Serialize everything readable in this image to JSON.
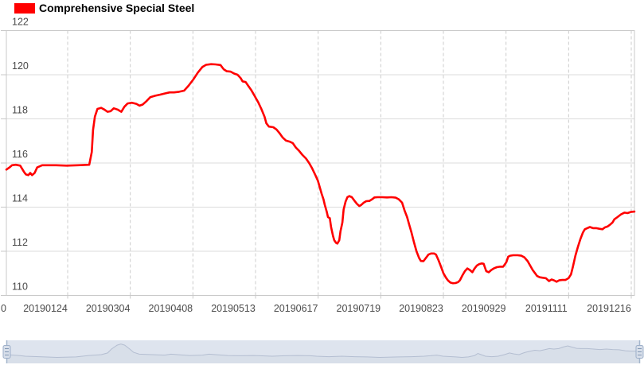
{
  "legend": {
    "label": "Comprehensive Special Steel",
    "swatch_color": "#FF0000"
  },
  "colors": {
    "series_line": "#FF0000",
    "h_grid": "#DBDBDB",
    "v_grid": "#CCCCCC",
    "plot_border": "#C8C8C8",
    "axis_text": "#4A4A4A",
    "nav_bg": "#DEE4EE",
    "nav_shadow_line": "#B4BED1",
    "nav_shadow_fill": "#D3DAE6",
    "nav_stem": "#A4B6CC",
    "nav_handle_fill": "#D8DFEA",
    "nav_handle_border": "#9DAFC9",
    "nav_handle_grip": "#7F95B3"
  },
  "chart_data": {
    "type": "line",
    "title": "Comprehensive Special Steel",
    "grid": {
      "horizontal": "solid",
      "vertical": "dashed",
      "legend_position": "top-left"
    },
    "y_axis": {
      "min": 110,
      "max": 122,
      "step": 2,
      "tick_labels": [
        "122",
        "120",
        "118",
        "116",
        "114",
        "112",
        "110"
      ]
    },
    "x_axis": {
      "left_clipped_label": "0",
      "tick_labels": [
        "20190124",
        "20190304",
        "20190408",
        "20190513",
        "20190617",
        "20190719",
        "20190823",
        "20190929",
        "20191111",
        "20191216"
      ]
    },
    "series": [
      {
        "name": "Comprehensive Special Steel",
        "color": "#FF0000",
        "points": [
          [
            0.0,
            115.7
          ],
          [
            0.005,
            115.8
          ],
          [
            0.009,
            115.9
          ],
          [
            0.015,
            115.92
          ],
          [
            0.022,
            115.88
          ],
          [
            0.028,
            115.6
          ],
          [
            0.031,
            115.48
          ],
          [
            0.035,
            115.45
          ],
          [
            0.038,
            115.55
          ],
          [
            0.041,
            115.45
          ],
          [
            0.045,
            115.55
          ],
          [
            0.049,
            115.8
          ],
          [
            0.057,
            115.9
          ],
          [
            0.079,
            115.9
          ],
          [
            0.096,
            115.88
          ],
          [
            0.114,
            115.9
          ],
          [
            0.132,
            115.92
          ],
          [
            0.136,
            116.5
          ],
          [
            0.138,
            117.5
          ],
          [
            0.141,
            118.1
          ],
          [
            0.145,
            118.45
          ],
          [
            0.151,
            118.5
          ],
          [
            0.156,
            118.42
          ],
          [
            0.161,
            118.32
          ],
          [
            0.166,
            118.35
          ],
          [
            0.171,
            118.48
          ],
          [
            0.177,
            118.42
          ],
          [
            0.183,
            118.32
          ],
          [
            0.188,
            118.55
          ],
          [
            0.193,
            118.7
          ],
          [
            0.2,
            118.73
          ],
          [
            0.207,
            118.68
          ],
          [
            0.212,
            118.6
          ],
          [
            0.217,
            118.65
          ],
          [
            0.223,
            118.8
          ],
          [
            0.229,
            118.98
          ],
          [
            0.237,
            119.05
          ],
          [
            0.245,
            119.1
          ],
          [
            0.252,
            119.15
          ],
          [
            0.26,
            119.2
          ],
          [
            0.267,
            119.2
          ],
          [
            0.275,
            119.23
          ],
          [
            0.283,
            119.28
          ],
          [
            0.29,
            119.5
          ],
          [
            0.298,
            119.8
          ],
          [
            0.305,
            120.1
          ],
          [
            0.312,
            120.35
          ],
          [
            0.318,
            120.45
          ],
          [
            0.326,
            120.48
          ],
          [
            0.333,
            120.47
          ],
          [
            0.341,
            120.44
          ],
          [
            0.346,
            120.25
          ],
          [
            0.351,
            120.16
          ],
          [
            0.357,
            120.14
          ],
          [
            0.363,
            120.05
          ],
          [
            0.368,
            120.0
          ],
          [
            0.373,
            119.85
          ],
          [
            0.376,
            119.7
          ],
          [
            0.381,
            119.67
          ],
          [
            0.385,
            119.5
          ],
          [
            0.39,
            119.3
          ],
          [
            0.395,
            119.05
          ],
          [
            0.401,
            118.75
          ],
          [
            0.406,
            118.45
          ],
          [
            0.411,
            118.1
          ],
          [
            0.414,
            117.8
          ],
          [
            0.418,
            117.65
          ],
          [
            0.425,
            117.62
          ],
          [
            0.43,
            117.52
          ],
          [
            0.435,
            117.35
          ],
          [
            0.44,
            117.15
          ],
          [
            0.445,
            117.02
          ],
          [
            0.451,
            116.97
          ],
          [
            0.456,
            116.9
          ],
          [
            0.461,
            116.7
          ],
          [
            0.466,
            116.55
          ],
          [
            0.471,
            116.38
          ],
          [
            0.477,
            116.2
          ],
          [
            0.482,
            116.0
          ],
          [
            0.487,
            115.75
          ],
          [
            0.492,
            115.45
          ],
          [
            0.496,
            115.2
          ],
          [
            0.499,
            114.9
          ],
          [
            0.502,
            114.6
          ],
          [
            0.505,
            114.35
          ],
          [
            0.507,
            114.1
          ],
          [
            0.51,
            113.8
          ],
          [
            0.512,
            113.55
          ],
          [
            0.515,
            113.5
          ],
          [
            0.517,
            113.1
          ],
          [
            0.52,
            112.7
          ],
          [
            0.522,
            112.5
          ],
          [
            0.525,
            112.38
          ],
          [
            0.527,
            112.35
          ],
          [
            0.53,
            112.5
          ],
          [
            0.532,
            112.9
          ],
          [
            0.535,
            113.3
          ],
          [
            0.537,
            113.9
          ],
          [
            0.54,
            114.25
          ],
          [
            0.543,
            114.45
          ],
          [
            0.546,
            114.5
          ],
          [
            0.55,
            114.45
          ],
          [
            0.554,
            114.3
          ],
          [
            0.558,
            114.15
          ],
          [
            0.562,
            114.05
          ],
          [
            0.565,
            114.1
          ],
          [
            0.569,
            114.2
          ],
          [
            0.573,
            114.27
          ],
          [
            0.578,
            114.28
          ],
          [
            0.582,
            114.35
          ],
          [
            0.586,
            114.44
          ],
          [
            0.591,
            114.45
          ],
          [
            0.598,
            114.45
          ],
          [
            0.606,
            114.44
          ],
          [
            0.613,
            114.45
          ],
          [
            0.62,
            114.43
          ],
          [
            0.625,
            114.35
          ],
          [
            0.63,
            114.2
          ],
          [
            0.634,
            113.85
          ],
          [
            0.638,
            113.55
          ],
          [
            0.641,
            113.25
          ],
          [
            0.645,
            112.85
          ],
          [
            0.649,
            112.4
          ],
          [
            0.653,
            112.0
          ],
          [
            0.657,
            111.7
          ],
          [
            0.66,
            111.56
          ],
          [
            0.664,
            111.55
          ],
          [
            0.668,
            111.7
          ],
          [
            0.672,
            111.85
          ],
          [
            0.676,
            111.9
          ],
          [
            0.681,
            111.9
          ],
          [
            0.684,
            111.85
          ],
          [
            0.688,
            111.6
          ],
          [
            0.692,
            111.3
          ],
          [
            0.696,
            111.0
          ],
          [
            0.7,
            110.8
          ],
          [
            0.703,
            110.68
          ],
          [
            0.707,
            110.58
          ],
          [
            0.711,
            110.55
          ],
          [
            0.715,
            110.56
          ],
          [
            0.719,
            110.6
          ],
          [
            0.722,
            110.68
          ],
          [
            0.726,
            110.9
          ],
          [
            0.73,
            111.1
          ],
          [
            0.734,
            111.22
          ],
          [
            0.738,
            111.15
          ],
          [
            0.742,
            111.05
          ],
          [
            0.745,
            111.2
          ],
          [
            0.749,
            111.35
          ],
          [
            0.753,
            111.42
          ],
          [
            0.757,
            111.45
          ],
          [
            0.76,
            111.43
          ],
          [
            0.764,
            111.1
          ],
          [
            0.768,
            111.05
          ],
          [
            0.772,
            111.15
          ],
          [
            0.776,
            111.22
          ],
          [
            0.781,
            111.28
          ],
          [
            0.786,
            111.3
          ],
          [
            0.791,
            111.3
          ],
          [
            0.796,
            111.5
          ],
          [
            0.799,
            111.75
          ],
          [
            0.802,
            111.8
          ],
          [
            0.807,
            111.82
          ],
          [
            0.814,
            111.82
          ],
          [
            0.82,
            111.8
          ],
          [
            0.825,
            111.72
          ],
          [
            0.83,
            111.55
          ],
          [
            0.834,
            111.35
          ],
          [
            0.838,
            111.15
          ],
          [
            0.842,
            111.0
          ],
          [
            0.845,
            110.88
          ],
          [
            0.849,
            110.82
          ],
          [
            0.854,
            110.8
          ],
          [
            0.859,
            110.78
          ],
          [
            0.864,
            110.65
          ],
          [
            0.868,
            110.72
          ],
          [
            0.872,
            110.68
          ],
          [
            0.876,
            110.62
          ],
          [
            0.88,
            110.68
          ],
          [
            0.885,
            110.7
          ],
          [
            0.89,
            110.7
          ],
          [
            0.895,
            110.78
          ],
          [
            0.899,
            110.95
          ],
          [
            0.902,
            111.3
          ],
          [
            0.906,
            111.8
          ],
          [
            0.91,
            112.2
          ],
          [
            0.914,
            112.55
          ],
          [
            0.918,
            112.85
          ],
          [
            0.921,
            113.0
          ],
          [
            0.925,
            113.05
          ],
          [
            0.929,
            113.1
          ],
          [
            0.934,
            113.05
          ],
          [
            0.939,
            113.05
          ],
          [
            0.944,
            113.02
          ],
          [
            0.949,
            113.0
          ],
          [
            0.953,
            113.08
          ],
          [
            0.957,
            113.12
          ],
          [
            0.961,
            113.2
          ],
          [
            0.965,
            113.3
          ],
          [
            0.968,
            113.45
          ],
          [
            0.973,
            113.55
          ],
          [
            0.979,
            113.68
          ],
          [
            0.984,
            113.75
          ],
          [
            0.989,
            113.73
          ],
          [
            0.994,
            113.78
          ],
          [
            1.0,
            113.8
          ]
        ]
      }
    ]
  },
  "navigator": {
    "shadow_points": [
      [
        0.0,
        0.62
      ],
      [
        0.02,
        0.66
      ],
      [
        0.03,
        0.69
      ],
      [
        0.06,
        0.72
      ],
      [
        0.08,
        0.74
      ],
      [
        0.11,
        0.72
      ],
      [
        0.13,
        0.66
      ],
      [
        0.15,
        0.62
      ],
      [
        0.16,
        0.55
      ],
      [
        0.166,
        0.38
      ],
      [
        0.175,
        0.21
      ],
      [
        0.181,
        0.16
      ],
      [
        0.187,
        0.21
      ],
      [
        0.195,
        0.38
      ],
      [
        0.201,
        0.52
      ],
      [
        0.21,
        0.6
      ],
      [
        0.23,
        0.62
      ],
      [
        0.25,
        0.64
      ],
      [
        0.26,
        0.6
      ],
      [
        0.27,
        0.62
      ],
      [
        0.29,
        0.66
      ],
      [
        0.31,
        0.64
      ],
      [
        0.32,
        0.6
      ],
      [
        0.33,
        0.62
      ],
      [
        0.35,
        0.66
      ],
      [
        0.37,
        0.67
      ],
      [
        0.39,
        0.66
      ],
      [
        0.4,
        0.67
      ],
      [
        0.42,
        0.69
      ],
      [
        0.44,
        0.67
      ],
      [
        0.46,
        0.66
      ],
      [
        0.48,
        0.67
      ],
      [
        0.49,
        0.69
      ],
      [
        0.51,
        0.71
      ],
      [
        0.53,
        0.69
      ],
      [
        0.55,
        0.71
      ],
      [
        0.57,
        0.72
      ],
      [
        0.59,
        0.74
      ],
      [
        0.62,
        0.72
      ],
      [
        0.64,
        0.71
      ],
      [
        0.66,
        0.69
      ],
      [
        0.67,
        0.67
      ],
      [
        0.68,
        0.64
      ],
      [
        0.69,
        0.69
      ],
      [
        0.71,
        0.72
      ],
      [
        0.72,
        0.74
      ],
      [
        0.73,
        0.72
      ],
      [
        0.74,
        0.66
      ],
      [
        0.745,
        0.57
      ],
      [
        0.75,
        0.62
      ],
      [
        0.757,
        0.69
      ],
      [
        0.767,
        0.71
      ],
      [
        0.777,
        0.69
      ],
      [
        0.787,
        0.62
      ],
      [
        0.795,
        0.55
      ],
      [
        0.802,
        0.59
      ],
      [
        0.81,
        0.62
      ],
      [
        0.815,
        0.57
      ],
      [
        0.82,
        0.52
      ],
      [
        0.828,
        0.47
      ],
      [
        0.835,
        0.43
      ],
      [
        0.843,
        0.45
      ],
      [
        0.85,
        0.41
      ],
      [
        0.858,
        0.36
      ],
      [
        0.865,
        0.38
      ],
      [
        0.873,
        0.36
      ],
      [
        0.88,
        0.29
      ],
      [
        0.887,
        0.24
      ],
      [
        0.893,
        0.29
      ],
      [
        0.901,
        0.35
      ],
      [
        0.908,
        0.36
      ],
      [
        0.918,
        0.36
      ],
      [
        0.928,
        0.38
      ],
      [
        0.938,
        0.4
      ],
      [
        0.948,
        0.38
      ],
      [
        0.958,
        0.4
      ],
      [
        0.968,
        0.41
      ],
      [
        0.978,
        0.45
      ],
      [
        0.988,
        0.47
      ],
      [
        1.0,
        0.47
      ]
    ]
  }
}
